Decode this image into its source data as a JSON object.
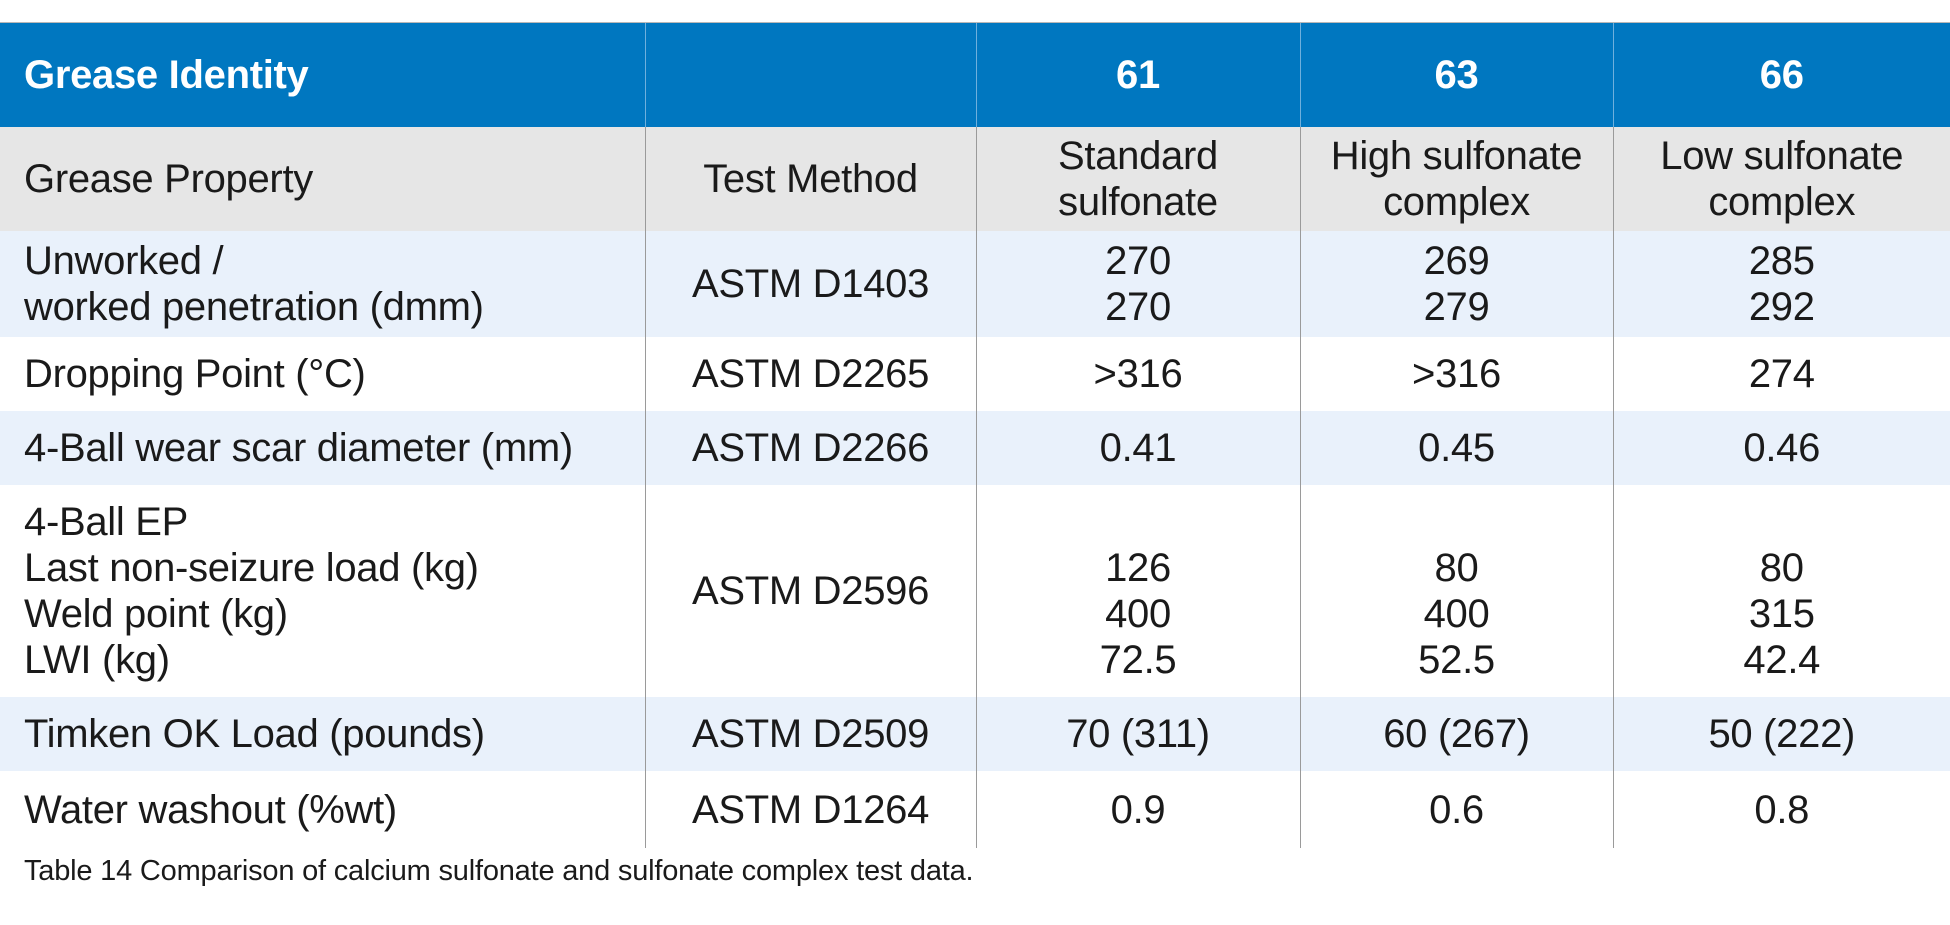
{
  "table": {
    "header": {
      "identity_label": "Grease Identity",
      "method_blank": "",
      "grease_ids": [
        "61",
        "63",
        "66"
      ]
    },
    "subheader": {
      "property_label": "Grease Property",
      "method_label": "Test Method",
      "grease_types": [
        [
          "Standard",
          "sulfonate"
        ],
        [
          "High sulfonate",
          "complex"
        ],
        [
          "Low sulfonate",
          "complex"
        ]
      ]
    },
    "rows": [
      {
        "property": [
          "Unworked /",
          "worked penetration (dmm)"
        ],
        "method": "ASTM D1403",
        "values": [
          [
            "270",
            "270"
          ],
          [
            "269",
            "279"
          ],
          [
            "285",
            "292"
          ]
        ]
      },
      {
        "property": [
          "Dropping Point (°C)"
        ],
        "method": "ASTM D2265",
        "values": [
          [
            ">316"
          ],
          [
            ">316"
          ],
          [
            "274"
          ]
        ]
      },
      {
        "property": [
          "4-Ball wear scar diameter (mm)"
        ],
        "method": "ASTM D2266",
        "values": [
          [
            "0.41"
          ],
          [
            "0.45"
          ],
          [
            "0.46"
          ]
        ]
      },
      {
        "property": [
          "4-Ball EP",
          "Last non-seizure load (kg)",
          "Weld point (kg)",
          "LWI (kg)"
        ],
        "method": "ASTM D2596",
        "values": [
          [
            "126",
            "400",
            "72.5"
          ],
          [
            "80",
            "400",
            "52.5"
          ],
          [
            "80",
            "315",
            "42.4"
          ]
        ]
      },
      {
        "property": [
          "Timken OK Load (pounds)"
        ],
        "method": "ASTM D2509",
        "values": [
          [
            "70 (311)"
          ],
          [
            "60 (267)"
          ],
          [
            "50 (222)"
          ]
        ]
      },
      {
        "property": [
          "Water washout (%wt)"
        ],
        "method": "ASTM D1264",
        "values": [
          [
            "0.9"
          ],
          [
            "0.6"
          ],
          [
            "0.8"
          ]
        ]
      }
    ]
  },
  "caption": "Table 14 Comparison of calcium sulfonate and sulfonate complex test data.",
  "colors": {
    "header_bg": "#0077c0",
    "header_text": "#ffffff",
    "subheader_bg": "#e6e6e6",
    "shaded_row_bg": "#e9f1fb",
    "grid_line": "#9a9a9a"
  }
}
